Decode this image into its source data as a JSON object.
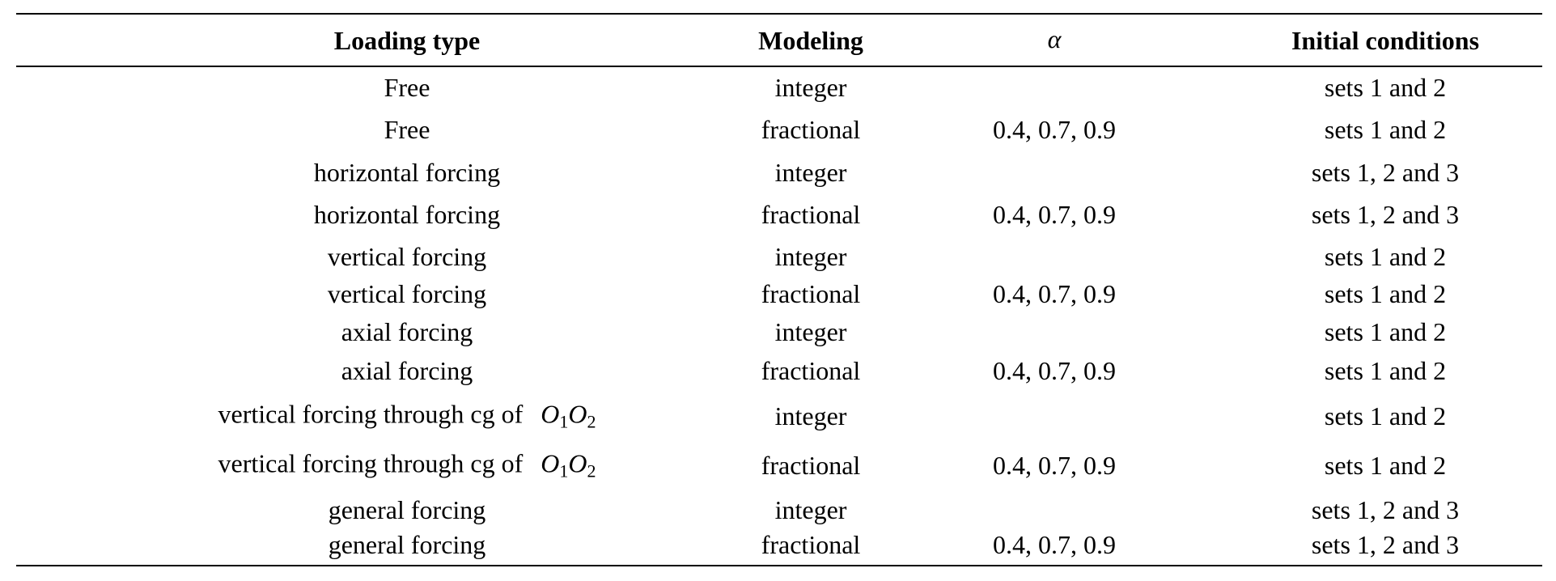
{
  "table": {
    "headers": {
      "loading_type": "Loading type",
      "modeling": "Modeling",
      "alpha": "α",
      "initial_conditions": "Initial conditions"
    },
    "rows": [
      {
        "loading": "Free",
        "math_o1": "",
        "math_o2": "",
        "modeling": "integer",
        "alpha": "",
        "initial": "sets 1 and 2"
      },
      {
        "loading": "Free",
        "math_o1": "",
        "math_o2": "",
        "modeling": "fractional",
        "alpha": "0.4, 0.7, 0.9",
        "initial": "sets 1 and 2"
      },
      {
        "loading": "horizontal forcing",
        "math_o1": "",
        "math_o2": "",
        "modeling": "integer",
        "alpha": "",
        "initial": "sets 1, 2 and 3"
      },
      {
        "loading": "horizontal forcing",
        "math_o1": "",
        "math_o2": "",
        "modeling": "fractional",
        "alpha": "0.4, 0.7, 0.9",
        "initial": "sets 1, 2 and 3"
      },
      {
        "loading": "vertical forcing",
        "math_o1": "",
        "math_o2": "",
        "modeling": "integer",
        "alpha": "",
        "initial": "sets 1 and 2"
      },
      {
        "loading": "vertical forcing",
        "math_o1": "",
        "math_o2": "",
        "modeling": "fractional",
        "alpha": "0.4, 0.7, 0.9",
        "initial": "sets 1 and 2"
      },
      {
        "loading": "axial forcing",
        "math_o1": "",
        "math_o2": "",
        "modeling": "integer",
        "alpha": "",
        "initial": "sets 1 and 2"
      },
      {
        "loading": "axial forcing",
        "math_o1": "",
        "math_o2": "",
        "modeling": "fractional",
        "alpha": "0.4, 0.7, 0.9",
        "initial": "sets 1 and 2"
      },
      {
        "loading": "vertical forcing through cg of",
        "math_o1": "O1",
        "math_o2": "O2",
        "modeling": "integer",
        "alpha": "",
        "initial": "sets 1 and 2"
      },
      {
        "loading": "vertical forcing through cg of",
        "math_o1": "O1",
        "math_o2": "O2",
        "modeling": "fractional",
        "alpha": "0.4, 0.7, 0.9",
        "initial": "sets 1 and 2"
      },
      {
        "loading": "general forcing",
        "math_o1": "",
        "math_o2": "",
        "modeling": "integer",
        "alpha": "",
        "initial": "sets 1, 2 and 3"
      },
      {
        "loading": "general forcing",
        "math_o1": "",
        "math_o2": "",
        "modeling": "fractional",
        "alpha": "0.4, 0.7, 0.9",
        "initial": "sets 1, 2 and 3"
      }
    ]
  }
}
